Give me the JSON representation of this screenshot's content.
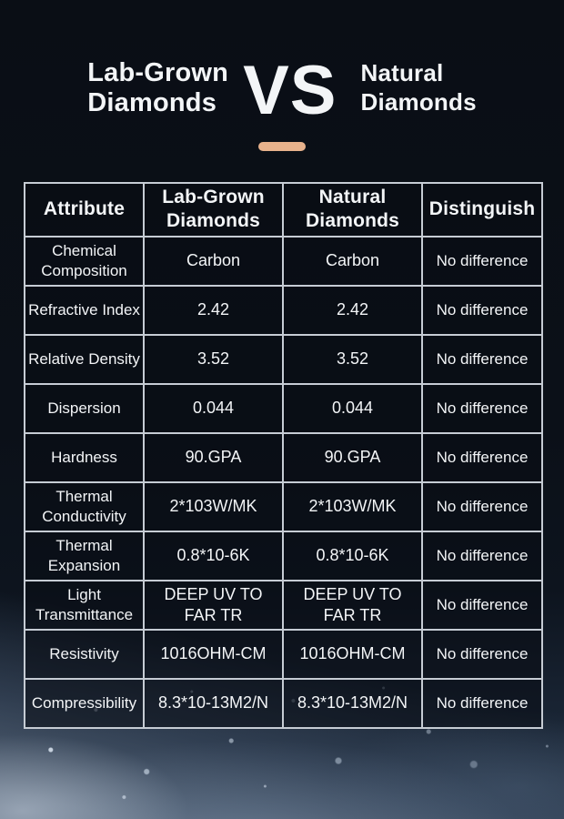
{
  "header": {
    "title_left": "Lab-Grown\nDiamonds",
    "vs": "VS",
    "title_right": "Natural\nDiamonds"
  },
  "colors": {
    "background": "#0a0e15",
    "divider": "#e7b28c",
    "table_border": "#c6ccd4",
    "text": "#f3f5f7"
  },
  "table": {
    "columns": [
      "Attribute",
      "Lab-Grown Diamonds",
      "Natural Diamonds",
      "Distinguish"
    ],
    "rows": [
      {
        "attribute": "Chemical Composition",
        "lab": "Carbon",
        "natural": "Carbon",
        "distinguish": "No difference"
      },
      {
        "attribute": "Refractive Index",
        "lab": "2.42",
        "natural": "2.42",
        "distinguish": "No difference"
      },
      {
        "attribute": "Relative Density",
        "lab": "3.52",
        "natural": "3.52",
        "distinguish": "No difference"
      },
      {
        "attribute": "Dispersion",
        "lab": "0.044",
        "natural": "0.044",
        "distinguish": "No difference"
      },
      {
        "attribute": "Hardness",
        "lab": "90.GPA",
        "natural": "90.GPA",
        "distinguish": "No difference"
      },
      {
        "attribute": "Thermal Conductivity",
        "lab": "2*103W/MK",
        "natural": "2*103W/MK",
        "distinguish": "No difference"
      },
      {
        "attribute": "Thermal Expansion",
        "lab": "0.8*10-6K",
        "natural": "0.8*10-6K",
        "distinguish": "No difference"
      },
      {
        "attribute": "Light Transmittance",
        "lab": "DEEP UV TO FAR TR",
        "natural": "DEEP UV TO FAR TR",
        "distinguish": "No difference"
      },
      {
        "attribute": "Resistivity",
        "lab": "1016OHM-CM",
        "natural": "1016OHM-CM",
        "distinguish": "No difference"
      },
      {
        "attribute": "Compressibility",
        "lab": "8.3*10-13M2/N",
        "natural": "8.3*10-13M2/N",
        "distinguish": "No difference"
      }
    ]
  }
}
